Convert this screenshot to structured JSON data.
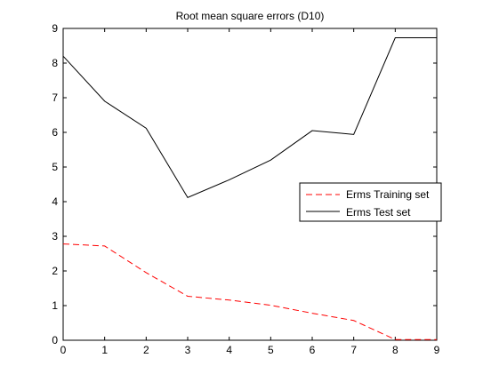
{
  "chart_data": {
    "type": "line",
    "title": "Root mean square errors (D10)",
    "xlabel": "",
    "ylabel": "",
    "xlim": [
      0,
      9
    ],
    "ylim": [
      0,
      9
    ],
    "xticks": [
      0,
      1,
      2,
      3,
      4,
      5,
      6,
      7,
      8,
      9
    ],
    "yticks": [
      0,
      1,
      2,
      3,
      4,
      5,
      6,
      7,
      8,
      9
    ],
    "grid": false,
    "legend_position": "right",
    "x": [
      0,
      1,
      2,
      3,
      4,
      5,
      6,
      7,
      8,
      9
    ],
    "series": [
      {
        "name": "Erms Training set",
        "color": "#ff0000",
        "line_style": "dashed",
        "values": [
          2.78,
          2.72,
          1.95,
          1.27,
          1.16,
          1.01,
          0.78,
          0.57,
          0.02,
          0.02
        ]
      },
      {
        "name": "Erms Test set",
        "color": "#000000",
        "line_style": "solid",
        "values": [
          8.2,
          6.9,
          6.12,
          4.12,
          4.63,
          5.2,
          6.05,
          5.94,
          8.73,
          8.73
        ]
      }
    ]
  }
}
